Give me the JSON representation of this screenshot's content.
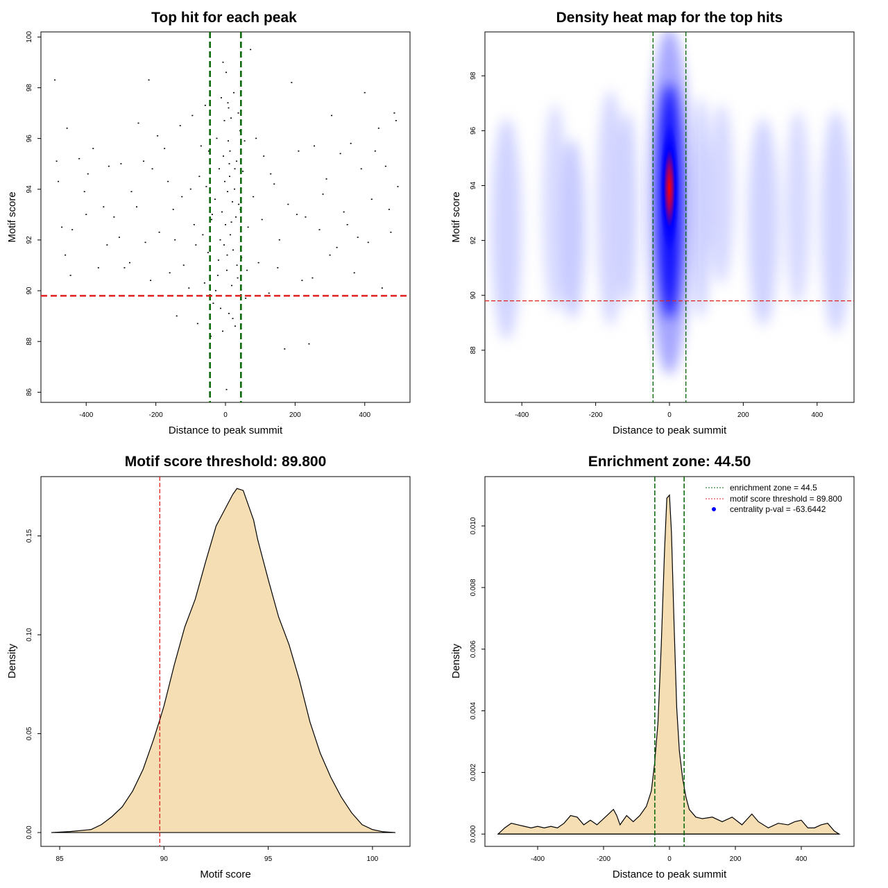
{
  "colors": {
    "threshold_line": "#e02020",
    "zone_line": "#006400",
    "density_fill": "#f5deb3",
    "heat_low": "#ffffff",
    "heat_mid": "#0000ff",
    "heat_high": "#ff0000",
    "legend_marker": "#0000ff",
    "points": "#000000"
  },
  "chart_data": [
    {
      "id": "scatter",
      "type": "scatter",
      "title": "Top hit for each peak",
      "xlabel": "Distance to peak summit",
      "ylabel": "Motif score",
      "xlim": [
        -530,
        530
      ],
      "ylim": [
        85.6,
        100.2
      ],
      "xticks": [
        -400,
        -200,
        0,
        200,
        400
      ],
      "xtick_labels": [
        "-400",
        "-200",
        "0",
        "200",
        "400"
      ],
      "yticks": [
        86,
        88,
        90,
        92,
        94,
        96,
        98,
        100
      ],
      "ytick_labels": [
        "86",
        "88",
        "90",
        "92",
        "94",
        "96",
        "98",
        "100"
      ],
      "threshold_y": 89.8,
      "zone_x": [
        -44.5,
        44.5
      ],
      "points": [
        [
          -490,
          98.3
        ],
        [
          -480,
          94.3
        ],
        [
          -455,
          96.4
        ],
        [
          -470,
          92.5
        ],
        [
          -460,
          91.4
        ],
        [
          -440,
          92.4
        ],
        [
          -420,
          95.2
        ],
        [
          -400,
          93.0
        ],
        [
          -395,
          94.6
        ],
        [
          -380,
          95.6
        ],
        [
          -350,
          93.3
        ],
        [
          -340,
          91.8
        ],
        [
          -320,
          92.9
        ],
        [
          -300,
          95.0
        ],
        [
          -290,
          90.9
        ],
        [
          -270,
          93.9
        ],
        [
          -250,
          96.6
        ],
        [
          -230,
          91.9
        ],
        [
          -220,
          98.3
        ],
        [
          -210,
          94.8
        ],
        [
          -190,
          92.3
        ],
        [
          -175,
          95.6
        ],
        [
          -160,
          90.7
        ],
        [
          -150,
          93.2
        ],
        [
          -140,
          89.0
        ],
        [
          -130,
          96.5
        ],
        [
          -120,
          91.0
        ],
        [
          -100,
          94.0
        ],
        [
          -90,
          92.6
        ],
        [
          -80,
          88.7
        ],
        [
          -70,
          95.7
        ],
        [
          -60,
          90.3
        ],
        [
          -55,
          94.1
        ],
        [
          -50,
          91.5
        ],
        [
          -45,
          87.5
        ],
        [
          -40,
          92.8
        ],
        [
          -35,
          89.5
        ],
        [
          -30,
          93.6
        ],
        [
          -25,
          96.0
        ],
        [
          -22,
          90.6
        ],
        [
          -20,
          91.2
        ],
        [
          -18,
          94.8
        ],
        [
          -15,
          92.0
        ],
        [
          -12,
          97.6
        ],
        [
          -10,
          93.1
        ],
        [
          -8,
          88.4
        ],
        [
          -6,
          95.3
        ],
        [
          -4,
          91.8
        ],
        [
          -2,
          94.3
        ],
        [
          0,
          92.6
        ],
        [
          2,
          98.6
        ],
        [
          4,
          90.8
        ],
        [
          6,
          93.9
        ],
        [
          8,
          95.9
        ],
        [
          10,
          89.1
        ],
        [
          12,
          94.5
        ],
        [
          14,
          92.2
        ],
        [
          16,
          96.8
        ],
        [
          18,
          90.2
        ],
        [
          20,
          93.5
        ],
        [
          22,
          91.6
        ],
        [
          24,
          97.8
        ],
        [
          26,
          94.0
        ],
        [
          28,
          88.6
        ],
        [
          30,
          92.9
        ],
        [
          32,
          95.1
        ],
        [
          35,
          90.5
        ],
        [
          38,
          93.4
        ],
        [
          42,
          96.3
        ],
        [
          46,
          91.3
        ],
        [
          50,
          94.7
        ],
        [
          58,
          89.7
        ],
        [
          65,
          92.5
        ],
        [
          72,
          99.5
        ],
        [
          80,
          93.7
        ],
        [
          95,
          91.1
        ],
        [
          110,
          95.3
        ],
        [
          125,
          89.9
        ],
        [
          140,
          94.2
        ],
        [
          155,
          92.0
        ],
        [
          170,
          87.7
        ],
        [
          190,
          98.2
        ],
        [
          205,
          93.0
        ],
        [
          220,
          90.4
        ],
        [
          240,
          87.9
        ],
        [
          255,
          95.7
        ],
        [
          270,
          92.4
        ],
        [
          290,
          94.4
        ],
        [
          305,
          96.9
        ],
        [
          320,
          91.7
        ],
        [
          340,
          93.1
        ],
        [
          360,
          95.8
        ],
        [
          380,
          92.1
        ],
        [
          400,
          97.8
        ],
        [
          420,
          93.6
        ],
        [
          440,
          96.4
        ],
        [
          460,
          94.9
        ],
        [
          475,
          92.3
        ],
        [
          485,
          97.0
        ],
        [
          495,
          94.1
        ],
        [
          -485,
          95.1
        ],
        [
          -445,
          90.6
        ],
        [
          -405,
          93.9
        ],
        [
          -365,
          90.9
        ],
        [
          -335,
          94.9
        ],
        [
          -305,
          92.1
        ],
        [
          -275,
          91.1
        ],
        [
          -255,
          93.3
        ],
        [
          -235,
          95.1
        ],
        [
          -215,
          90.4
        ],
        [
          -195,
          96.1
        ],
        [
          -165,
          94.3
        ],
        [
          -145,
          92.0
        ],
        [
          -125,
          93.7
        ],
        [
          -105,
          90.1
        ],
        [
          -95,
          96.9
        ],
        [
          -85,
          91.8
        ],
        [
          -75,
          94.5
        ],
        [
          -65,
          92.2
        ],
        [
          -58,
          97.3
        ],
        [
          -48,
          95.5
        ],
        [
          -42,
          88.2
        ],
        [
          -38,
          93.0
        ],
        [
          -28,
          90.0
        ],
        [
          -14,
          89.3
        ],
        [
          3,
          86.1
        ],
        [
          5,
          91.4
        ],
        [
          9,
          97.2
        ],
        [
          13,
          95.5
        ],
        [
          17,
          92.7
        ],
        [
          21,
          88.9
        ],
        [
          27,
          94.8
        ],
        [
          33,
          91.0
        ],
        [
          37,
          97.0
        ],
        [
          43,
          93.2
        ],
        [
          55,
          95.9
        ],
        [
          62,
          90.8
        ],
        [
          88,
          96.0
        ],
        [
          105,
          92.8
        ],
        [
          130,
          94.6
        ],
        [
          150,
          90.9
        ],
        [
          180,
          93.4
        ],
        [
          210,
          95.5
        ],
        [
          230,
          92.9
        ],
        [
          250,
          90.5
        ],
        [
          280,
          93.8
        ],
        [
          300,
          91.4
        ],
        [
          330,
          95.4
        ],
        [
          350,
          92.6
        ],
        [
          370,
          90.7
        ],
        [
          390,
          94.8
        ],
        [
          410,
          91.9
        ],
        [
          430,
          95.5
        ],
        [
          450,
          90.1
        ],
        [
          470,
          93.2
        ],
        [
          490,
          96.7
        ],
        [
          -7,
          99.0
        ],
        [
          7,
          97.4
        ],
        [
          -3,
          96.7
        ],
        [
          11,
          95.0
        ]
      ]
    },
    {
      "id": "heatmap",
      "type": "heatmap",
      "title": "Density heat map for the top hits",
      "xlabel": "Distance to peak summit",
      "ylabel": "Motif score",
      "xlim": [
        -500,
        500
      ],
      "ylim": [
        86.1,
        99.6
      ],
      "xticks": [
        -400,
        -200,
        0,
        200,
        400
      ],
      "xtick_labels": [
        "-400",
        "-200",
        "0",
        "200",
        "400"
      ],
      "yticks": [
        88,
        90,
        92,
        94,
        96,
        98
      ],
      "ytick_labels": [
        "88",
        "90",
        "92",
        "94",
        "96",
        "98"
      ],
      "threshold_y": 89.8,
      "zone_x": [
        -44.5,
        44.5
      ],
      "peak_center": [
        0,
        93.9
      ]
    },
    {
      "id": "density-score",
      "type": "area",
      "title": "Motif score threshold: 89.800",
      "xlabel": "Motif score",
      "ylabel": "Density",
      "xlim": [
        84.1,
        101.8
      ],
      "ylim": [
        -0.007,
        0.18
      ],
      "xticks": [
        85,
        90,
        95,
        100
      ],
      "xtick_labels": [
        "85",
        "90",
        "95",
        "100"
      ],
      "yticks": [
        0.0,
        0.05,
        0.1,
        0.15
      ],
      "ytick_labels": [
        "0.00",
        "0.05",
        "0.10",
        "0.15"
      ],
      "threshold_x": 89.8,
      "x": [
        84.6,
        85.5,
        86.5,
        87.0,
        87.5,
        88.0,
        88.5,
        89.0,
        89.5,
        89.8,
        90.0,
        90.5,
        91.0,
        91.5,
        92.0,
        92.5,
        93.0,
        93.3,
        93.5,
        93.8,
        94.0,
        94.3,
        94.5,
        95.0,
        95.5,
        96.0,
        96.5,
        97.0,
        97.5,
        98.0,
        98.5,
        99.0,
        99.5,
        100.0,
        100.5,
        101.1
      ],
      "y": [
        0.0,
        0.0005,
        0.0015,
        0.004,
        0.008,
        0.013,
        0.021,
        0.032,
        0.047,
        0.057,
        0.064,
        0.085,
        0.104,
        0.118,
        0.137,
        0.155,
        0.165,
        0.171,
        0.174,
        0.173,
        0.167,
        0.158,
        0.148,
        0.128,
        0.109,
        0.095,
        0.077,
        0.056,
        0.04,
        0.028,
        0.018,
        0.01,
        0.004,
        0.0015,
        0.0004,
        0.0
      ]
    },
    {
      "id": "density-distance",
      "type": "area",
      "title": "Enrichment zone: 44.50",
      "xlabel": "Distance to peak summit",
      "ylabel": "Density",
      "xlim": [
        -560,
        560
      ],
      "ylim": [
        -0.0004,
        0.0116
      ],
      "xticks": [
        -400,
        -200,
        0,
        200,
        400
      ],
      "xtick_labels": [
        "-400",
        "-200",
        "0",
        "200",
        "400"
      ],
      "yticks": [
        0.0,
        0.002,
        0.004,
        0.006,
        0.008,
        0.01
      ],
      "ytick_labels": [
        "0.000",
        "0.002",
        "0.004",
        "0.006",
        "0.008",
        "0.010"
      ],
      "zone_x": [
        -44.5,
        44.5
      ],
      "x": [
        -520,
        -500,
        -480,
        -460,
        -440,
        -420,
        -400,
        -380,
        -360,
        -340,
        -320,
        -300,
        -280,
        -260,
        -240,
        -220,
        -200,
        -180,
        -170,
        -160,
        -150,
        -130,
        -110,
        -90,
        -70,
        -55,
        -45,
        -35,
        -25,
        -15,
        -8,
        0,
        6,
        14,
        22,
        30,
        40,
        50,
        60,
        80,
        100,
        130,
        160,
        190,
        220,
        250,
        270,
        300,
        330,
        360,
        380,
        400,
        420,
        440,
        460,
        480,
        500,
        515
      ],
      "y": [
        0.0,
        0.0002,
        0.00035,
        0.0003,
        0.00025,
        0.0002,
        0.00025,
        0.0002,
        0.00025,
        0.0002,
        0.00035,
        0.0006,
        0.00055,
        0.0003,
        0.00045,
        0.0003,
        0.0005,
        0.0007,
        0.0008,
        0.0006,
        0.0003,
        0.0006,
        0.0004,
        0.0006,
        0.0009,
        0.0014,
        0.0023,
        0.0036,
        0.0061,
        0.0092,
        0.0109,
        0.011,
        0.0098,
        0.0068,
        0.0041,
        0.0027,
        0.0018,
        0.0012,
        0.0008,
        0.00055,
        0.0005,
        0.00055,
        0.0004,
        0.00055,
        0.0003,
        0.00065,
        0.0004,
        0.0002,
        0.00035,
        0.0003,
        0.0004,
        0.00045,
        0.0002,
        0.0002,
        0.0003,
        0.00035,
        0.0001,
        0.0
      ],
      "legend": {
        "position": "top-right",
        "entries": [
          {
            "label": "enrichment zone = 44.5",
            "kind": "dotted-line",
            "color": "#006400"
          },
          {
            "label": "motif score threshold = 89.800",
            "kind": "dotted-line",
            "color": "#e02020"
          },
          {
            "label": "centrality p-val = -63.6442",
            "kind": "dot",
            "color": "#0000ff"
          }
        ]
      }
    }
  ]
}
